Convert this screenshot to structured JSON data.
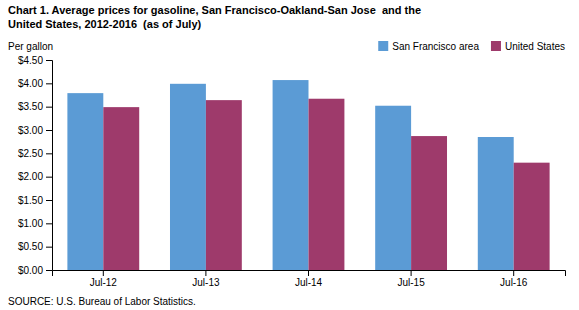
{
  "chart_data": {
    "type": "bar",
    "title": "Chart 1. Average prices for gasoline, San Francisco-Oakland-San Jose  and the",
    "subtitle": "United States, 2012-2016  (as of July)",
    "ylabel": "Per gallon",
    "annotations": [
      "SOURCE: U.S. Bureau of Labor Statistics."
    ],
    "categories": [
      "Jul-12",
      "Jul-13",
      "Jul-14",
      "Jul-15",
      "Jul-16"
    ],
    "series": [
      {
        "name": "San Francisco area",
        "color": "#5B9BD5",
        "values": [
          3.79,
          3.99,
          4.07,
          3.52,
          2.85
        ]
      },
      {
        "name": "United States",
        "color": "#9E3A6B",
        "values": [
          3.49,
          3.64,
          3.67,
          2.87,
          2.3
        ]
      }
    ],
    "ylim": [
      0,
      4.5
    ],
    "yticks": [
      {
        "value": 0,
        "label": "$0.00"
      },
      {
        "value": 0.5,
        "label": "$0.50"
      },
      {
        "value": 1,
        "label": "$1.00"
      },
      {
        "value": 1.5,
        "label": "$1.50"
      },
      {
        "value": 2,
        "label": "$2.00"
      },
      {
        "value": 2.5,
        "label": "$2.50"
      },
      {
        "value": 3,
        "label": "$3.00"
      },
      {
        "value": 3.5,
        "label": "$3.50"
      },
      {
        "value": 4,
        "label": "$4.00"
      },
      {
        "value": 4.5,
        "label": "$4.50"
      }
    ],
    "grid": false,
    "legend": "upper right"
  }
}
